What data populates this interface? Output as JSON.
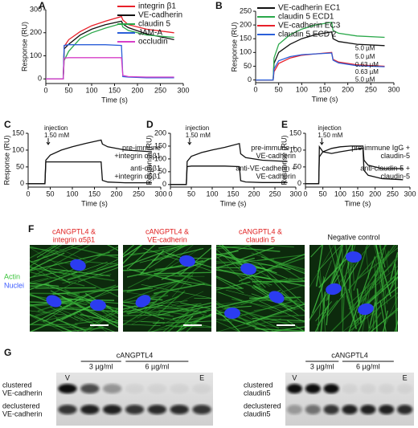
{
  "chart_data": [
    {
      "type": "line",
      "label": "A",
      "x_label": "Time (s)",
      "y_label": "Response (RU)",
      "x": [
        0,
        38,
        40,
        50,
        75,
        100,
        130,
        165,
        168,
        180,
        220,
        280
      ],
      "xlim": [
        0,
        300
      ],
      "ylim": [
        -20,
        300
      ],
      "xticks": [
        0,
        50,
        100,
        150,
        200,
        250,
        300
      ],
      "yticks": [
        0,
        100,
        200,
        300
      ],
      "legend": "upper right",
      "series": [
        {
          "name": "integrin β1",
          "color": "#e8202a",
          "values": [
            0,
            0,
            140,
            170,
            205,
            230,
            250,
            270,
            255,
            235,
            215,
            200
          ]
        },
        {
          "name": "VE-cadherin",
          "color": "#111111",
          "values": [
            0,
            0,
            130,
            150,
            190,
            215,
            235,
            250,
            238,
            222,
            195,
            170
          ]
        },
        {
          "name": "claudin 5",
          "color": "#2aa84a",
          "values": [
            0,
            0,
            80,
            120,
            175,
            200,
            220,
            240,
            225,
            210,
            190,
            180
          ]
        },
        {
          "name": "JAM-A",
          "color": "#2b5fd9",
          "values": [
            0,
            0,
            145,
            148,
            148,
            148,
            148,
            145,
            10,
            8,
            5,
            5
          ]
        },
        {
          "name": "occludin",
          "color": "#d63fc8",
          "values": [
            0,
            0,
            90,
            92,
            92,
            92,
            92,
            92,
            15,
            10,
            8,
            8
          ]
        }
      ]
    },
    {
      "type": "line",
      "label": "B",
      "x_label": "Time (s)",
      "y_label": "Response (RU)",
      "x": [
        0,
        38,
        40,
        50,
        75,
        100,
        130,
        165,
        168,
        180,
        220,
        280
      ],
      "xlim": [
        0,
        300
      ],
      "ylim": [
        -10,
        250
      ],
      "xticks": [
        0,
        50,
        100,
        150,
        200,
        250,
        300
      ],
      "yticks": [
        0,
        50,
        100,
        150,
        200,
        250
      ],
      "legend": "upper right",
      "annotations": [
        "5.0 µM",
        "5.0 µM",
        "0.63 µM",
        "0.63 µM",
        "5.0 µM"
      ],
      "series": [
        {
          "name": "VE-cadherin EC1",
          "color": "#111111",
          "values": [
            0,
            0,
            60,
            100,
            130,
            150,
            165,
            175,
            150,
            140,
            130,
            125
          ]
        },
        {
          "name": "claudin 5 ECD1",
          "color": "#2aa84a",
          "values": [
            0,
            0,
            80,
            130,
            165,
            185,
            200,
            210,
            180,
            170,
            160,
            155
          ]
        },
        {
          "name": "VE-cadherin EC3",
          "color": "#e8202a",
          "values": [
            0,
            0,
            30,
            60,
            80,
            90,
            95,
            100,
            75,
            65,
            55,
            50
          ]
        },
        {
          "name": "claudin 5 ECD 2",
          "color": "#2b5fd9",
          "values": [
            0,
            0,
            40,
            70,
            85,
            92,
            95,
            98,
            72,
            62,
            52,
            48
          ]
        }
      ]
    },
    {
      "type": "line",
      "label": "C",
      "x_label": "Time (s)",
      "y_label": "Response (RU)",
      "injection": [
        "injection",
        "1.50 mM"
      ],
      "x": [
        0,
        38,
        40,
        50,
        75,
        100,
        130,
        165,
        168,
        180,
        220,
        280
      ],
      "xlim": [
        0,
        300
      ],
      "ylim": [
        -10,
        150
      ],
      "xticks": [
        0,
        50,
        100,
        150,
        200,
        250,
        300
      ],
      "yticks": [
        0,
        50,
        100,
        150
      ],
      "series": [
        {
          "label": [
            "pre-immune",
            "+integrin α5β1"
          ],
          "color": "#111111",
          "values": [
            0,
            0,
            70,
            85,
            100,
            110,
            120,
            130,
            118,
            110,
            100,
            95
          ]
        },
        {
          "label": [
            "anti-α5β1",
            "+integrin α5β1"
          ],
          "color": "#111111",
          "values": [
            0,
            0,
            65,
            65,
            65,
            65,
            65,
            65,
            10,
            5,
            3,
            3
          ]
        }
      ]
    },
    {
      "type": "line",
      "label": "D",
      "x_label": "Time (s)",
      "y_label": "Response (RU)",
      "injection": [
        "injection",
        "1.50 mM"
      ],
      "x": [
        0,
        38,
        40,
        50,
        75,
        100,
        130,
        165,
        168,
        180,
        220,
        280
      ],
      "xlim": [
        0,
        300
      ],
      "ylim": [
        -10,
        200
      ],
      "xticks": [
        0,
        50,
        100,
        150,
        200,
        250,
        300
      ],
      "yticks": [
        0,
        50,
        100,
        150,
        200
      ],
      "series": [
        {
          "label": [
            "pre-immune +",
            "VE-cadherin"
          ],
          "color": "#111111",
          "values": [
            0,
            0,
            90,
            110,
            125,
            135,
            145,
            160,
            120,
            105,
            95,
            90
          ]
        },
        {
          "label": [
            "anti-VE-cadherin +",
            "VE-cadherin"
          ],
          "color": "#111111",
          "values": [
            0,
            0,
            70,
            72,
            72,
            72,
            72,
            70,
            15,
            10,
            8,
            8
          ]
        }
      ]
    },
    {
      "type": "line",
      "label": "E",
      "x_label": "Time (s)",
      "y_label": "Response (RU)",
      "injection": [
        "injection",
        "1.50 mM"
      ],
      "x": [
        0,
        38,
        40,
        50,
        75,
        100,
        130,
        165,
        168,
        180,
        220,
        280
      ],
      "xlim": [
        0,
        300
      ],
      "ylim": [
        -10,
        150
      ],
      "xticks": [
        0,
        50,
        100,
        150,
        200,
        250,
        300
      ],
      "yticks": [
        0,
        50,
        100,
        150
      ],
      "series": [
        {
          "label": [
            "pre-immune IgG +",
            "claudin-5"
          ],
          "color": "#111111",
          "values": [
            0,
            0,
            80,
            95,
            105,
            110,
            112,
            112,
            70,
            55,
            45,
            45
          ]
        },
        {
          "label": [
            "anti-claudin-5 +",
            "claudin-5"
          ],
          "color": "#111111",
          "values": [
            0,
            0,
            110,
            95,
            90,
            95,
            100,
            105,
            40,
            25,
            15,
            12
          ]
        }
      ]
    }
  ],
  "panel_f": {
    "label": "F",
    "row_labels": [
      "Actin",
      "Nuclei"
    ],
    "images": [
      {
        "caption": [
          "cANGPTL4 &",
          "integrin α5β1"
        ]
      },
      {
        "caption": [
          "cANGPTL4 &",
          "VE-cadherin"
        ]
      },
      {
        "caption": [
          "cANGPTL4 &",
          "claudin 5"
        ]
      },
      {
        "caption": [
          "Negative control"
        ]
      }
    ]
  },
  "panel_g": {
    "label": "G",
    "blots": [
      {
        "header": "cANGPTL4",
        "doses": [
          "3 µg/ml",
          "6 µg/ml"
        ],
        "lanes": [
          "V",
          "E"
        ],
        "rows": [
          [
            "clustered",
            "VE-cadherin"
          ],
          [
            "declustered",
            "VE-cadherin"
          ]
        ]
      },
      {
        "header": "cANGPTL4",
        "doses": [
          "3 µg/ml",
          "6 µg/ml"
        ],
        "lanes": [
          "V",
          "E"
        ],
        "rows": [
          [
            "clustered",
            "claudin5"
          ],
          [
            "declustered",
            "claudin5"
          ]
        ]
      }
    ]
  }
}
